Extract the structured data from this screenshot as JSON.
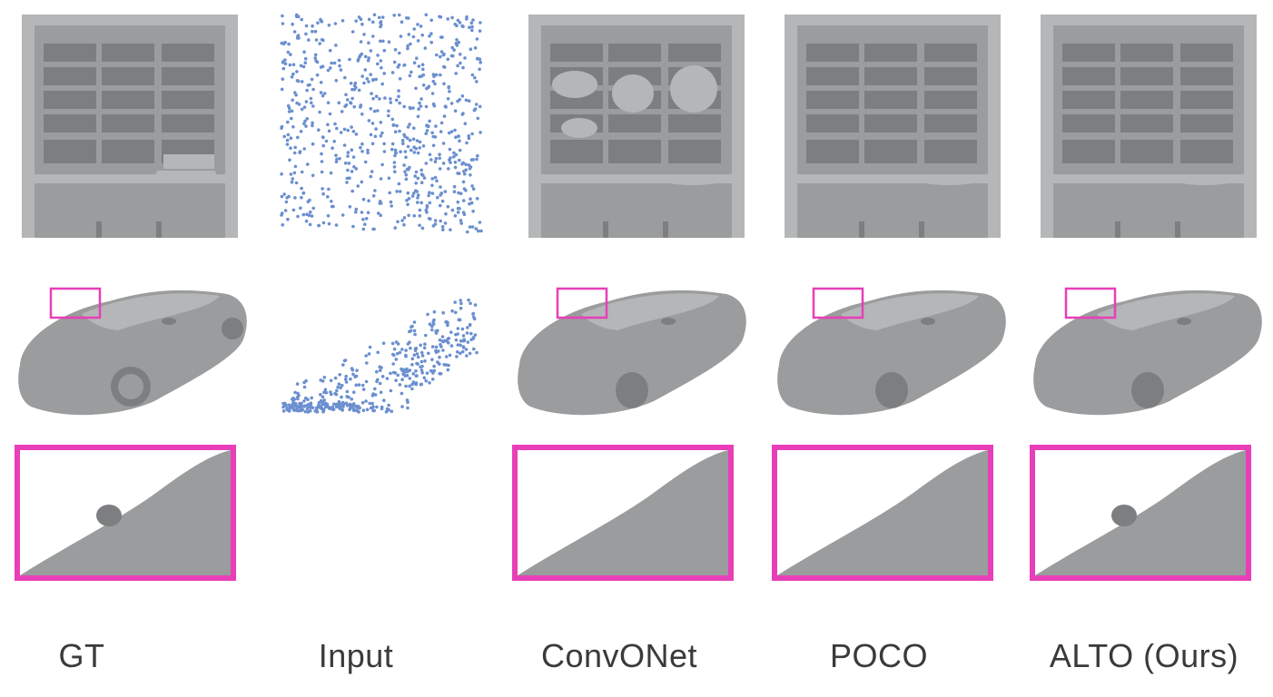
{
  "figure": {
    "columns": [
      {
        "id": "gt",
        "label": "GT",
        "show_zoom": true,
        "zoom_bump": true,
        "has_mesh": true
      },
      {
        "id": "input",
        "label": "Input",
        "show_zoom": false,
        "zoom_bump": false,
        "has_mesh": false
      },
      {
        "id": "convonet",
        "label": "ConvONet",
        "show_zoom": true,
        "zoom_bump": false,
        "has_mesh": true
      },
      {
        "id": "poco",
        "label": "POCO",
        "show_zoom": true,
        "zoom_bump": false,
        "has_mesh": true
      },
      {
        "id": "alto",
        "label": "ALTO (Ours)",
        "show_zoom": true,
        "zoom_bump": true,
        "has_mesh": true
      }
    ],
    "colors": {
      "highlight_box": "#e83fb8",
      "mesh": "#9a9c9d",
      "mesh_dark": "#7c7e80",
      "mesh_light": "#b4b6b7",
      "points": "#6b8fcf"
    }
  }
}
